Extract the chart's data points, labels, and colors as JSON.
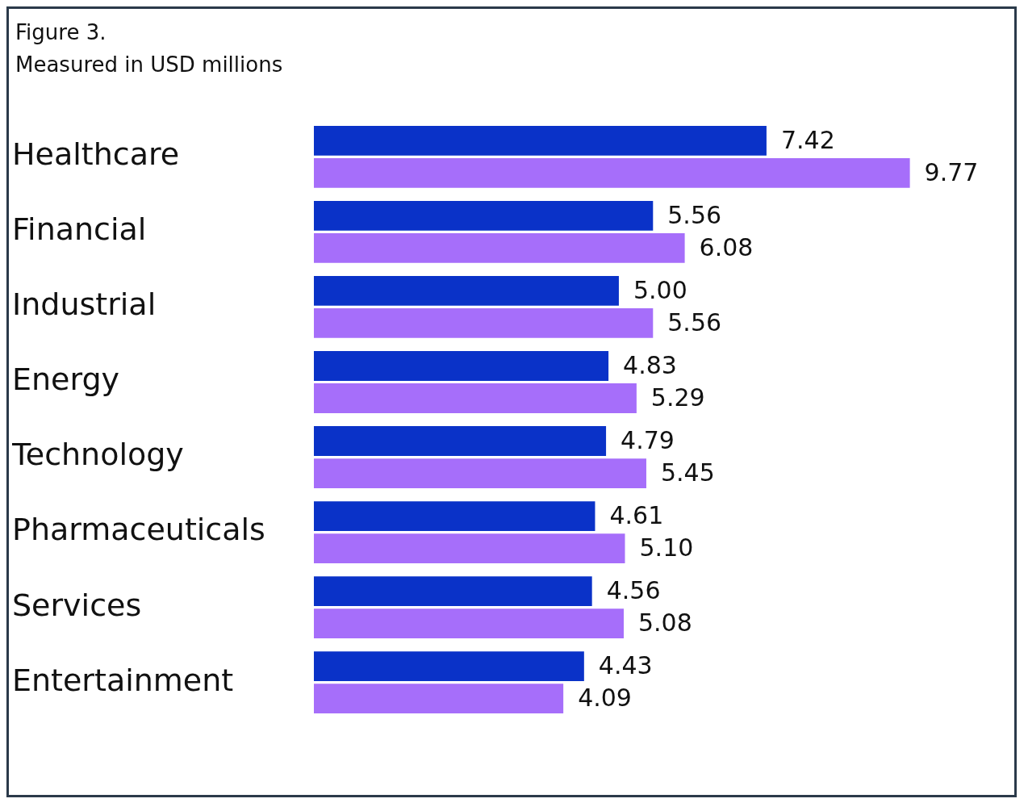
{
  "chart_data": {
    "type": "bar",
    "orientation": "horizontal",
    "title": "Figure 3.",
    "subtitle": "Measured in USD millions",
    "categories": [
      "Healthcare",
      "Financial",
      "Industrial",
      "Energy",
      "Technology",
      "Pharmaceuticals",
      "Services",
      "Entertainment"
    ],
    "series": [
      {
        "color": "#0a32c8",
        "values": [
          7.42,
          5.56,
          5.0,
          4.83,
          4.79,
          4.61,
          4.56,
          4.43
        ],
        "value_labels": [
          "7.42",
          "5.56",
          "5.00",
          "4.83",
          "4.79",
          "4.61",
          "4.56",
          "4.43"
        ]
      },
      {
        "color": "#a66efa",
        "values": [
          9.77,
          6.08,
          5.56,
          5.29,
          5.45,
          5.1,
          5.08,
          4.09
        ],
        "value_labels": [
          "9.77",
          "6.08",
          "5.56",
          "5.29",
          "5.45",
          "5.10",
          "5.08",
          "4.09"
        ]
      }
    ],
    "grid": false,
    "legend": false
  }
}
